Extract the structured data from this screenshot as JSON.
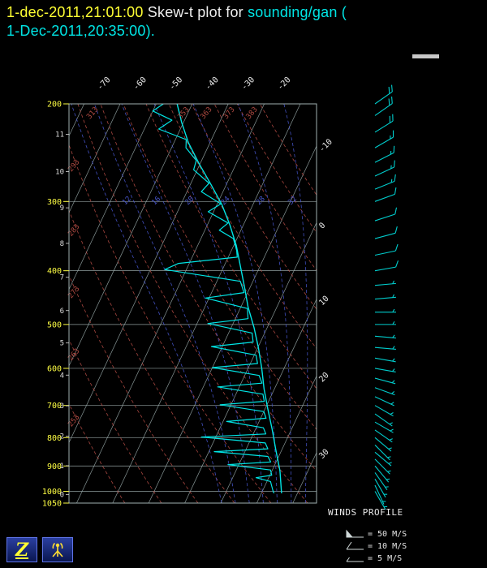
{
  "title": {
    "timestamp": "1-dec-2011,21:01:00",
    "separator": "  Skew-t plot for ",
    "station": "sounding/gan (",
    "line2": "1-Dec-2011,20:35:00)."
  },
  "winds_panel": {
    "title": "WINDS PROFILE",
    "legend": [
      {
        "icon": "flag-barb-icon",
        "label": "= 50 M/S"
      },
      {
        "icon": "full-barb-icon",
        "label": "= 10 M/S"
      },
      {
        "icon": "half-barb-icon",
        "label": "= 5 M/S"
      }
    ]
  },
  "toolbar": {
    "z_label": "Z"
  },
  "colors": {
    "background": "#000000",
    "timestamp_text": "#ffff33",
    "title_text": "#eeeeee",
    "station_text": "#00e5e5",
    "pressure_labels": "#ffff44",
    "height_labels": "#dddddd",
    "temp_labels": "#e8e8e8",
    "grid": "#9fb0b0",
    "dry_adiabat": "#b04a42",
    "moist_adiabat": "#4553c8",
    "trace": "#00e5e5",
    "wind_barb": "#00cccc",
    "legend_icon": "#cfd8d8"
  },
  "chart_data": {
    "type": "skewt",
    "pressure_range_hpa": [
      200,
      1050
    ],
    "pressure_ticks": [
      200,
      300,
      400,
      500,
      600,
      700,
      800,
      900,
      1000,
      1050
    ],
    "height_ticks_km": [
      0,
      1,
      2,
      3,
      4,
      5,
      6,
      7,
      8,
      9,
      10,
      11
    ],
    "temp_ticks_top_c": [
      -70,
      -60,
      -50,
      -40,
      -30,
      -20
    ],
    "temp_ticks_right_c": [
      -10,
      0,
      10,
      20,
      30
    ],
    "isotherm_step_c": 10,
    "dry_adiabat_values_k": [
      253,
      263,
      273,
      283,
      293,
      303,
      313,
      323,
      333,
      343,
      353,
      363,
      373,
      383
    ],
    "dry_adiabat_labeled_k": [
      253,
      263,
      273,
      283,
      293,
      303,
      313,
      353,
      363,
      373,
      383
    ],
    "moist_adiabat_values_c": [
      8,
      12,
      16,
      20,
      24,
      28,
      32,
      36
    ],
    "moist_adiabat_labeled_c": [
      12,
      16,
      20,
      24,
      28,
      32
    ],
    "temperature_profile_p_t": [
      [
        1008,
        25.6
      ],
      [
        1000,
        25.3
      ],
      [
        918,
        22.2
      ],
      [
        843,
        18.4
      ],
      [
        774,
        14.7
      ],
      [
        712,
        10.9
      ],
      [
        653,
        7.1
      ],
      [
        600,
        3.8
      ],
      [
        551,
        0.2
      ],
      [
        506,
        -3.7
      ],
      [
        465,
        -8.0
      ],
      [
        427,
        -11.7
      ],
      [
        392,
        -15.5
      ],
      [
        360,
        -19.3
      ],
      [
        331,
        -23.7
      ],
      [
        304,
        -28.6
      ],
      [
        279,
        -34.4
      ],
      [
        256,
        -40.4
      ],
      [
        235,
        -46.0
      ],
      [
        216,
        -50.5
      ],
      [
        200,
        -54.2
      ]
    ],
    "dewpoint_profile_p_t": [
      [
        1008,
        23.5
      ],
      [
        1000,
        23
      ],
      [
        980,
        22
      ],
      [
        960,
        21
      ],
      [
        945,
        16.5
      ],
      [
        935,
        20.5
      ],
      [
        915,
        19.5
      ],
      [
        895,
        7
      ],
      [
        885,
        18.5
      ],
      [
        865,
        17
      ],
      [
        848,
        1.5
      ],
      [
        838,
        16
      ],
      [
        818,
        14.5
      ],
      [
        798,
        -4
      ],
      [
        788,
        13.5
      ],
      [
        768,
        12
      ],
      [
        748,
        1
      ],
      [
        738,
        11.5
      ],
      [
        718,
        10
      ],
      [
        698,
        -3
      ],
      [
        688,
        8.8
      ],
      [
        668,
        7.5
      ],
      [
        648,
        -6
      ],
      [
        638,
        5.8
      ],
      [
        618,
        4
      ],
      [
        598,
        -10
      ],
      [
        588,
        2
      ],
      [
        568,
        0.5
      ],
      [
        548,
        -13
      ],
      [
        538,
        -2
      ],
      [
        518,
        -3.5
      ],
      [
        498,
        -17
      ],
      [
        488,
        -6.5
      ],
      [
        468,
        -8
      ],
      [
        448,
        -21
      ],
      [
        438,
        -11
      ],
      [
        418,
        -13.5
      ],
      [
        398,
        -36
      ],
      [
        388,
        -33
      ],
      [
        378,
        -17.5
      ],
      [
        368,
        -18.5
      ],
      [
        350,
        -21
      ],
      [
        338,
        -26
      ],
      [
        328,
        -24.5
      ],
      [
        313,
        -31.5
      ],
      [
        303,
        -29
      ],
      [
        288,
        -36
      ],
      [
        278,
        -35
      ],
      [
        263,
        -41
      ],
      [
        253,
        -41.5
      ],
      [
        240,
        -46
      ],
      [
        232,
        -47
      ],
      [
        222,
        -56
      ],
      [
        214,
        -53.5
      ],
      [
        206,
        -60
      ],
      [
        200,
        -58
      ]
    ],
    "wind_profile_p_ms_dir": [
      [
        1000,
        4,
        150
      ],
      [
        975,
        5,
        155
      ],
      [
        950,
        5,
        150
      ],
      [
        925,
        6,
        145
      ],
      [
        900,
        6,
        140
      ],
      [
        875,
        5,
        135
      ],
      [
        850,
        5,
        130
      ],
      [
        825,
        4,
        135
      ],
      [
        800,
        5,
        130
      ],
      [
        775,
        6,
        125
      ],
      [
        750,
        6,
        120
      ],
      [
        725,
        5,
        125
      ],
      [
        700,
        5,
        120
      ],
      [
        675,
        4,
        115
      ],
      [
        650,
        5,
        110
      ],
      [
        625,
        5,
        105
      ],
      [
        600,
        6,
        100
      ],
      [
        575,
        5,
        100
      ],
      [
        550,
        5,
        95
      ],
      [
        525,
        4,
        95
      ],
      [
        500,
        5,
        90
      ],
      [
        475,
        6,
        90
      ],
      [
        450,
        7,
        85
      ],
      [
        425,
        8,
        85
      ],
      [
        400,
        9,
        80
      ],
      [
        375,
        10,
        78
      ],
      [
        350,
        11,
        75
      ],
      [
        325,
        12,
        72
      ],
      [
        300,
        13,
        70
      ],
      [
        285,
        15,
        68
      ],
      [
        270,
        16,
        65
      ],
      [
        255,
        17,
        63
      ],
      [
        240,
        18,
        60
      ],
      [
        225,
        20,
        58
      ],
      [
        210,
        21,
        55
      ],
      [
        200,
        22,
        55
      ]
    ]
  }
}
